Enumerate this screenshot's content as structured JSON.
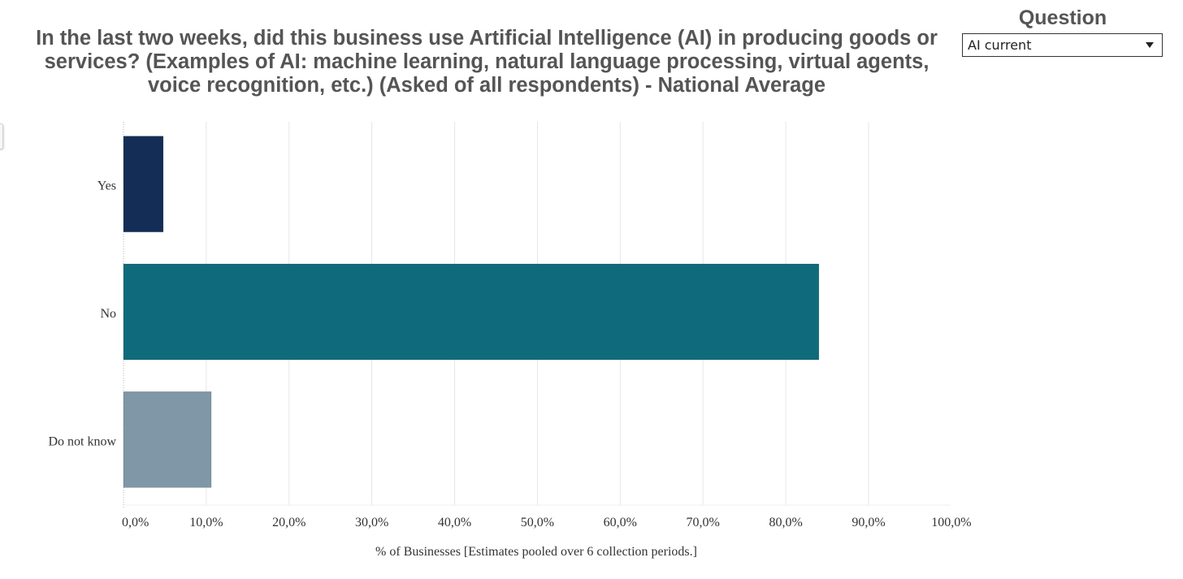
{
  "filter": {
    "label": "Question",
    "selected": "AI current",
    "icon": "chevron-down-icon"
  },
  "chart_data": {
    "type": "bar",
    "orientation": "horizontal",
    "title": "In the last two weeks, did this business use Artificial Intelligence (AI) in producing goods or services? (Examples of AI: machine learning, natural language processing, virtual agents, voice recognition, etc.) (Asked of all respondents) - National Average",
    "categories": [
      "Yes",
      "No",
      "Do not know"
    ],
    "values": [
      4.8,
      84.0,
      10.6
    ],
    "colors": [
      "#142d56",
      "#0f6b7b",
      "#7f97a6"
    ],
    "xlabel": "% of Businesses [Estimates pooled over 6 collection periods.]",
    "ylabel": "",
    "xlim": [
      0,
      100
    ],
    "ticks": [
      0,
      10,
      20,
      30,
      40,
      50,
      60,
      70,
      80,
      90,
      100
    ],
    "tick_labels": [
      "0,0%",
      "10,0%",
      "20,0%",
      "30,0%",
      "40,0%",
      "50,0%",
      "60,0%",
      "70,0%",
      "80,0%",
      "90,0%",
      "100,0%"
    ],
    "grid": true,
    "legend": "none"
  }
}
